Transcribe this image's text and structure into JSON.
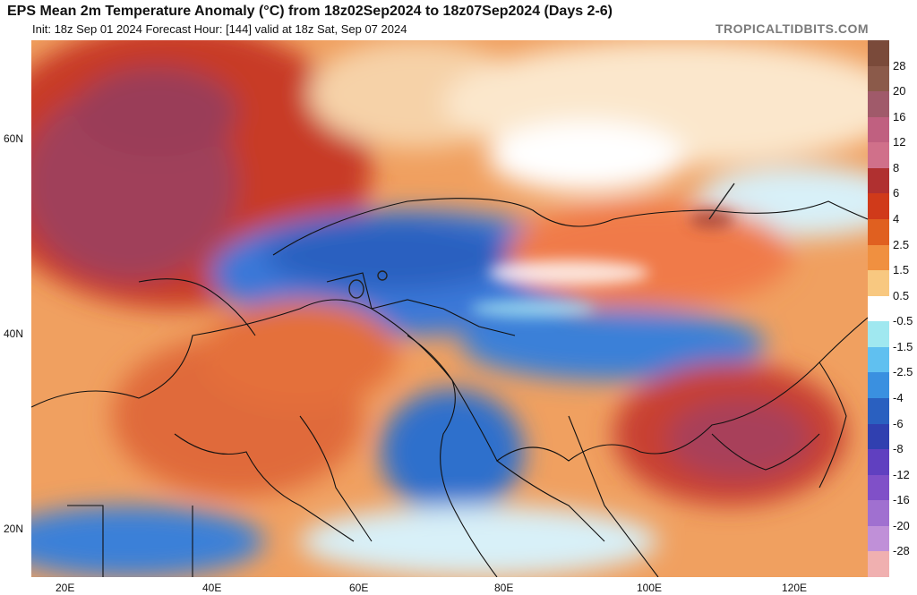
{
  "title": "EPS Mean 2m Temperature Anomaly (°C) from 18z02Sep2024 to 18z07Sep2024 (Days 2-6)",
  "subtitle": "Init: 18z Sep 01 2024   Forecast Hour: [144]   valid at 18z Sat, Sep 07 2024",
  "source": "TROPICALTIDBITS.COM",
  "lat_labels": [
    "60N",
    "40N",
    "20N"
  ],
  "lon_labels": [
    "20E",
    "40E",
    "60E",
    "80E",
    "100E",
    "120E"
  ],
  "colorbar": {
    "labels": [
      "28",
      "20",
      "16",
      "12",
      "8",
      "6",
      "4",
      "2.5",
      "1.5",
      "0.5",
      "-0.5",
      "-1.5",
      "-2.5",
      "-4",
      "-6",
      "-8",
      "-12",
      "-16",
      "-20",
      "-28"
    ],
    "colors": [
      "#7a4a3a",
      "#8b5a4a",
      "#a05a6a",
      "#c06080",
      "#d0708a",
      "#b03030",
      "#d03a1a",
      "#e06020",
      "#f09040",
      "#f8c880",
      "#ffffff",
      "#a0e8f0",
      "#60c0f0",
      "#3a90e0",
      "#2a60c0",
      "#3040b0",
      "#6040c0",
      "#8050c8",
      "#a070d0",
      "#c090d8",
      "#f0b0b0"
    ]
  },
  "regions": {
    "siberia_warm": "warm",
    "central_asia_cold": "cold",
    "tibet_cold": "cold",
    "china_warm": "warm"
  }
}
